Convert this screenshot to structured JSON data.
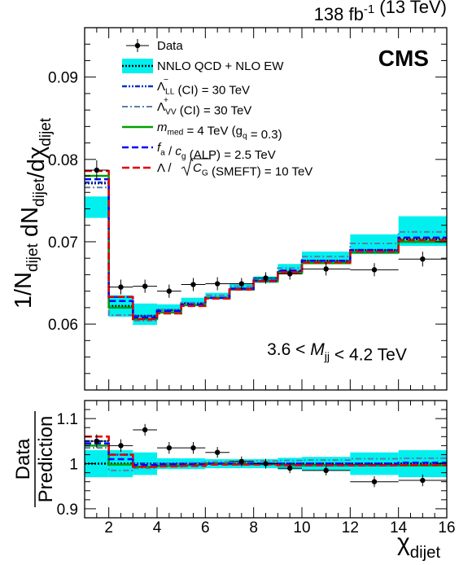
{
  "header": {
    "lumi_main": "138 fb",
    "lumi_exp": "-1",
    "lumi_tail": " (13 TeV)",
    "experiment": "CMS",
    "mass_range": "3.6 < M",
    "mass_range_sub": "jj",
    "mass_range_tail": " < 4.2 TeV"
  },
  "legend": [
    {
      "key": "data",
      "label": "Data"
    },
    {
      "key": "qcd",
      "label": "NNLO QCD + NLO EW"
    },
    {
      "key": "ll",
      "label": "Λ⁻LL (CI) = 30 TeV"
    },
    {
      "key": "vv",
      "label": "Λ⁺VV (CI) = 30 TeV"
    },
    {
      "key": "med",
      "label": "m_med = 4 TeV (g_q = 0.3)"
    },
    {
      "key": "alp",
      "label": "f_a / c_g (ALP) = 2.5 TeV"
    },
    {
      "key": "smeft",
      "label": "Λ / √C_G (SMEFT) = 10 TeV"
    }
  ],
  "colors": {
    "band": "#00f0f0",
    "qcd": "#000000",
    "ll": "#0033cc",
    "vv": "#5b7fa6",
    "med": "#00a000",
    "alp": "#0000ff",
    "smeft": "#e00000"
  },
  "chart_data": {
    "type": "line",
    "top": {
      "ylabel": "1/N_dijet dN_dijet/dχ_dijet",
      "ylim": [
        0.052,
        0.096
      ],
      "yticks": [
        0.06,
        0.07,
        0.08,
        0.09
      ],
      "ytick_labels": [
        "0.06",
        "0.07",
        "0.08",
        "0.09"
      ]
    },
    "bottom": {
      "ylabel": "Data / Prediction",
      "ylim": [
        0.88,
        1.14
      ],
      "yticks": [
        0.9,
        1.0,
        1.1
      ],
      "ytick_labels": [
        "0.9",
        "1",
        "1.1"
      ]
    },
    "x": {
      "label": "χ_dijet",
      "lim": [
        1,
        16
      ],
      "ticks": [
        2,
        4,
        6,
        8,
        10,
        12,
        14,
        16
      ],
      "tick_labels": [
        "2",
        "4",
        "6",
        "8",
        "10",
        "12",
        "14",
        "16"
      ]
    },
    "bin_edges": [
      1,
      2,
      3,
      4,
      5,
      6,
      7,
      8,
      9,
      10,
      12,
      14,
      16
    ],
    "series": [
      {
        "key": "qcd",
        "values": [
          0.0771,
          0.0622,
          0.061,
          0.0617,
          0.0625,
          0.0632,
          0.0643,
          0.0652,
          0.0664,
          0.0677,
          0.069,
          0.0703
        ]
      },
      {
        "key": "ll",
        "values": [
          0.0772,
          0.0633,
          0.061,
          0.0617,
          0.0624,
          0.0632,
          0.0643,
          0.0653,
          0.0663,
          0.0675,
          0.0688,
          0.07
        ]
      },
      {
        "key": "vv",
        "values": [
          0.0766,
          0.0611,
          0.0604,
          0.0617,
          0.0626,
          0.0635,
          0.0646,
          0.0656,
          0.0668,
          0.0682,
          0.0698,
          0.0712
        ]
      },
      {
        "key": "med",
        "values": [
          0.078,
          0.062,
          0.0606,
          0.0614,
          0.0623,
          0.0632,
          0.0642,
          0.0652,
          0.0662,
          0.0674,
          0.0687,
          0.07
        ]
      },
      {
        "key": "alp",
        "values": [
          0.0776,
          0.0628,
          0.0608,
          0.0616,
          0.0624,
          0.0632,
          0.0643,
          0.0653,
          0.0665,
          0.0677,
          0.069,
          0.0705
        ]
      },
      {
        "key": "smeft",
        "values": [
          0.0786,
          0.0633,
          0.0606,
          0.0613,
          0.0622,
          0.0631,
          0.0642,
          0.0652,
          0.0663,
          0.0675,
          0.0688,
          0.0702
        ]
      }
    ],
    "band_top": [
      0.0742,
      0.0622,
      0.0612,
      0.0619,
      0.0627,
      0.0634,
      0.0645,
      0.0654,
      0.0667,
      0.0681,
      0.0697,
      0.0713
    ],
    "band_err": [
      0.0013,
      0.0013,
      0.0013,
      0.0005,
      0.0005,
      0.0004,
      0.0004,
      0.0004,
      0.0006,
      0.0007,
      0.0012,
      0.0018
    ],
    "data": {
      "x": [
        1.5,
        2.5,
        3.5,
        4.5,
        5.5,
        6.5,
        7.5,
        8.5,
        9.5,
        11,
        13,
        15
      ],
      "y": [
        0.0787,
        0.0645,
        0.0646,
        0.064,
        0.0648,
        0.0649,
        0.0649,
        0.0656,
        0.0661,
        0.0667,
        0.0666,
        0.0679
      ],
      "yerr": [
        0.0012,
        0.0009,
        0.0008,
        0.0008,
        0.0008,
        0.0008,
        0.0007,
        0.0007,
        0.0007,
        0.0008,
        0.0008,
        0.0009
      ]
    },
    "ratio": {
      "data": [
        1.05,
        1.04,
        1.075,
        1.035,
        1.035,
        1.025,
        1.005,
        1.0,
        0.99,
        0.985,
        0.96,
        0.963
      ],
      "data_err": [
        0.015,
        0.014,
        0.013,
        0.013,
        0.013,
        0.012,
        0.011,
        0.011,
        0.011,
        0.011,
        0.012,
        0.013
      ],
      "band_err": [
        0.03,
        0.03,
        0.025,
        0.012,
        0.012,
        0.01,
        0.01,
        0.01,
        0.013,
        0.015,
        0.025,
        0.03
      ],
      "series": [
        {
          "key": "ll",
          "values": [
            1.05,
            1.02,
            1.0,
            1.0,
            1.0,
            1.0,
            0.999,
            1.0,
            0.998,
            0.997,
            0.997,
            0.996
          ]
        },
        {
          "key": "vv",
          "values": [
            1.035,
            0.985,
            0.99,
            1.0,
            1.002,
            1.004,
            1.005,
            1.006,
            1.007,
            1.008,
            1.011,
            1.012
          ]
        },
        {
          "key": "med",
          "values": [
            1.04,
            0.998,
            0.993,
            0.995,
            0.997,
            1.0,
            0.999,
            0.999,
            0.996,
            0.996,
            0.996,
            0.996
          ]
        },
        {
          "key": "alp",
          "values": [
            1.045,
            1.01,
            0.997,
            0.999,
            0.999,
            1.0,
            1.0,
            1.0,
            1.0,
            1.0,
            1.0,
            1.002
          ]
        },
        {
          "key": "smeft",
          "values": [
            1.06,
            1.02,
            0.993,
            0.994,
            0.995,
            0.998,
            0.998,
            0.998,
            0.996,
            0.996,
            0.996,
            0.997
          ]
        }
      ]
    }
  }
}
